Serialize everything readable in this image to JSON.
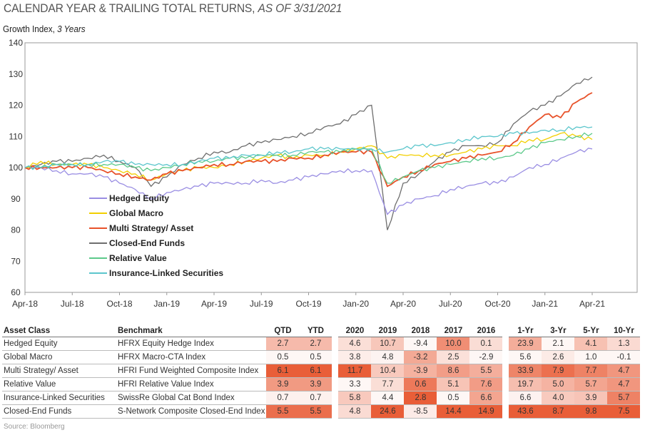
{
  "header": {
    "title": "CALENDAR YEAR & TRAILING TOTAL RETURNS,",
    "title_italic": "AS OF 3/31/2021",
    "subtitle": "Growth Index,",
    "subtitle_italic": "3 Years"
  },
  "chart_data": {
    "type": "line",
    "title": "Growth Index, 3 Years",
    "ylim": [
      60,
      140
    ],
    "yticks": [
      "60",
      "70",
      "80",
      "90",
      "100",
      "110",
      "120",
      "130",
      "140"
    ],
    "xticks": [
      "Apr-18",
      "Jul-18",
      "Oct-18",
      "Jan-19",
      "Apr-19",
      "Jul-19",
      "Oct-19",
      "Jan-20",
      "Apr-20",
      "Jul-20",
      "Oct-20",
      "Jan-21",
      "Apr-21"
    ],
    "x_months": 37,
    "legend_placement": "lower-left inside",
    "series": [
      {
        "name": "Hedged Equity",
        "color": "#9a8ee3",
        "values": [
          100,
          100,
          99,
          98,
          98,
          97,
          95,
          93,
          90,
          92,
          93,
          94,
          95,
          95,
          95,
          96,
          95,
          96,
          97,
          98,
          99,
          99,
          99,
          85,
          88,
          90,
          91,
          93,
          94,
          95,
          95,
          97,
          100,
          101,
          103,
          105,
          106
        ]
      },
      {
        "name": "Global  Macro",
        "color": "#f2cf00",
        "values": [
          100,
          102,
          101,
          101,
          101,
          100,
          99,
          98,
          96,
          98,
          99,
          100,
          100,
          101,
          102,
          103,
          104,
          103,
          104,
          104,
          105,
          106,
          107,
          103,
          104,
          104,
          104,
          104,
          105,
          106,
          107,
          107,
          109,
          109,
          111,
          110,
          109
        ]
      },
      {
        "name": "Multi Strategy/ Asset",
        "color": "#e8522a",
        "values": [
          100,
          100,
          100,
          100,
          100,
          99,
          98,
          97,
          96,
          98,
          99,
          100,
          101,
          101,
          102,
          102,
          102,
          103,
          103,
          104,
          105,
          105,
          105,
          94,
          97,
          99,
          101,
          102,
          103,
          104,
          105,
          108,
          113,
          117,
          116,
          121,
          124
        ]
      },
      {
        "name": "Closed-End Funds",
        "color": "#6e6e6e",
        "values": [
          100,
          101,
          102,
          102,
          103,
          104,
          102,
          100,
          94,
          97,
          101,
          103,
          105,
          105,
          107,
          108,
          109,
          110,
          111,
          113,
          114,
          117,
          120,
          80,
          95,
          98,
          102,
          105,
          107,
          107,
          108,
          114,
          118,
          120,
          123,
          127,
          129
        ]
      },
      {
        "name": "Relative Value",
        "color": "#5cc98a",
        "values": [
          100,
          100,
          101,
          101,
          101,
          101,
          101,
          100,
          99,
          100,
          101,
          102,
          102,
          103,
          103,
          104,
          104,
          104,
          105,
          105,
          105,
          106,
          106,
          95,
          97,
          99,
          100,
          101,
          102,
          103,
          103,
          104,
          106,
          108,
          109,
          110,
          111
        ]
      },
      {
        "name": "Insurance-Linked Securities",
        "color": "#5cc6cc",
        "values": [
          100,
          100,
          101,
          101,
          101,
          102,
          102,
          101,
          101,
          101,
          101,
          102,
          103,
          103,
          104,
          104,
          105,
          105,
          106,
          106,
          106,
          106,
          106,
          105,
          106,
          107,
          107,
          108,
          109,
          110,
          110,
          111,
          111,
          112,
          112,
          113,
          113
        ]
      }
    ]
  },
  "table": {
    "headers": [
      "Asset Class",
      "Benchmark",
      "QTD",
      "YTD",
      "2020",
      "2019",
      "2018",
      "2017",
      "2016",
      "1-Yr",
      "3-Yr",
      "5-Yr",
      "10-Yr"
    ],
    "heat_color": "#e8552e",
    "rows": [
      {
        "asset": "Hedged Equity",
        "benchmark": "HFRX Equity Hedge Index",
        "values": [
          "2.7",
          "2.7",
          "4.6",
          "10.7",
          "-9.4",
          "10.0",
          "0.1",
          "23.9",
          "2.1",
          "4.1",
          "1.3"
        ]
      },
      {
        "asset": "Global Macro",
        "benchmark": "HFRX Macro-CTA Index",
        "values": [
          "0.5",
          "0.5",
          "3.8",
          "4.8",
          "-3.2",
          "2.5",
          "-2.9",
          "5.6",
          "2.6",
          "1.0",
          "-0.1"
        ]
      },
      {
        "asset": "Multi Strategy/ Asset",
        "benchmark": "HFRI Fund Weighted Composite Index",
        "values": [
          "6.1",
          "6.1",
          "11.7",
          "10.4",
          "-3.9",
          "8.6",
          "5.5",
          "33.9",
          "7.9",
          "7.7",
          "4.7"
        ]
      },
      {
        "asset": "Relative Value",
        "benchmark": "HFRI Relative Value Index",
        "values": [
          "3.9",
          "3.9",
          "3.3",
          "7.7",
          "0.6",
          "5.1",
          "7.6",
          "19.7",
          "5.0",
          "5.7",
          "4.7"
        ]
      },
      {
        "asset": "Insurance-Linked Securities",
        "benchmark": "SwissRe Global Cat Bond Index",
        "values": [
          "0.7",
          "0.7",
          "5.8",
          "4.4",
          "2.8",
          "0.5",
          "6.6",
          "6.6",
          "4.0",
          "3.9",
          "5.7"
        ]
      },
      {
        "asset": "Closed-End Funds",
        "benchmark": "S-Network Composite Closed-End Index",
        "values": [
          "5.5",
          "5.5",
          "4.8",
          "24.6",
          "-8.5",
          "14.4",
          "14.9",
          "43.6",
          "8.7",
          "9.8",
          "7.5"
        ]
      }
    ]
  },
  "source": "Source: Bloomberg"
}
